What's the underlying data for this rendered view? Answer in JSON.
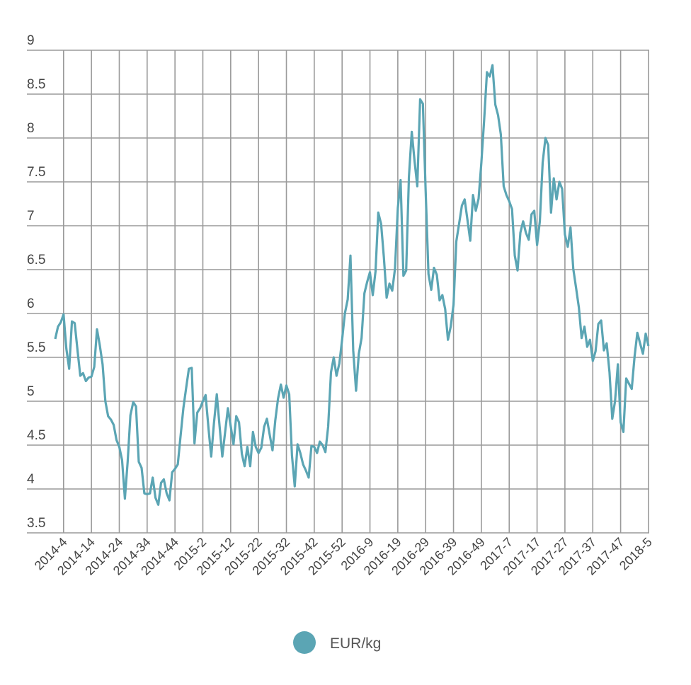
{
  "chart_data": {
    "type": "line",
    "title": "",
    "xlabel": "",
    "ylabel": "",
    "ylim": [
      3.5,
      9
    ],
    "grid": true,
    "legend_position": "bottom",
    "y_ticks": [
      "3.5",
      "4",
      "4.5",
      "5",
      "5.5",
      "6",
      "6.5",
      "7",
      "7.5",
      "8",
      "8.5",
      "9"
    ],
    "x_ticks": [
      "2014-4",
      "2014-14",
      "2014-24",
      "2014-34",
      "2014-44",
      "2015-2",
      "2015-12",
      "2015-22",
      "2015-32",
      "2015-42",
      "2015-52",
      "2016-9",
      "2016-19",
      "2016-29",
      "2016-39",
      "2016-49",
      "2017-7",
      "2017-17",
      "2017-27",
      "2017-37",
      "2017-47",
      "2018-5"
    ],
    "x": [
      "2014-1",
      "2014-2",
      "2014-3",
      "2014-4",
      "2014-5",
      "2014-6",
      "2014-7",
      "2014-8",
      "2014-9",
      "2014-10",
      "2014-11",
      "2014-12",
      "2014-13",
      "2014-14",
      "2014-15",
      "2014-16",
      "2014-17",
      "2014-18",
      "2014-19",
      "2014-20",
      "2014-21",
      "2014-22",
      "2014-23",
      "2014-24",
      "2014-25",
      "2014-26",
      "2014-27",
      "2014-28",
      "2014-29",
      "2014-30",
      "2014-31",
      "2014-32",
      "2014-33",
      "2014-34",
      "2014-35",
      "2014-36",
      "2014-37",
      "2014-38",
      "2014-39",
      "2014-40",
      "2014-41",
      "2014-42",
      "2014-43",
      "2014-44",
      "2014-45",
      "2014-46",
      "2014-47",
      "2014-48",
      "2014-49",
      "2014-50",
      "2014-51",
      "2014-52",
      "2015-1",
      "2015-2",
      "2015-3",
      "2015-4",
      "2015-5",
      "2015-6",
      "2015-7",
      "2015-8",
      "2015-9",
      "2015-10",
      "2015-11",
      "2015-12",
      "2015-13",
      "2015-14",
      "2015-15",
      "2015-16",
      "2015-17",
      "2015-18",
      "2015-19",
      "2015-20",
      "2015-21",
      "2015-22",
      "2015-23",
      "2015-24",
      "2015-25",
      "2015-26",
      "2015-27",
      "2015-28",
      "2015-29",
      "2015-30",
      "2015-31",
      "2015-32",
      "2015-33",
      "2015-34",
      "2015-35",
      "2015-36",
      "2015-37",
      "2015-38",
      "2015-39",
      "2015-40",
      "2015-41",
      "2015-42",
      "2015-43",
      "2015-44",
      "2015-45",
      "2015-46",
      "2015-47",
      "2015-48",
      "2015-49",
      "2015-50",
      "2015-51",
      "2015-52",
      "2015-53",
      "2016-1",
      "2016-2",
      "2016-3",
      "2016-4",
      "2016-5",
      "2016-6",
      "2016-7",
      "2016-8",
      "2016-9",
      "2016-10",
      "2016-11",
      "2016-12",
      "2016-13",
      "2016-14",
      "2016-15",
      "2016-16",
      "2016-17",
      "2016-18",
      "2016-19",
      "2016-20",
      "2016-21",
      "2016-22",
      "2016-23",
      "2016-24",
      "2016-25",
      "2016-26",
      "2016-27",
      "2016-28",
      "2016-29",
      "2016-30",
      "2016-31",
      "2016-32",
      "2016-33",
      "2016-34",
      "2016-35",
      "2016-36",
      "2016-37",
      "2016-38",
      "2016-39",
      "2016-40",
      "2016-41",
      "2016-42",
      "2016-43",
      "2016-44",
      "2016-45",
      "2016-46",
      "2016-47",
      "2016-48",
      "2016-49",
      "2016-50",
      "2016-51",
      "2016-52",
      "2017-1",
      "2017-2",
      "2017-3",
      "2017-4",
      "2017-5",
      "2017-6",
      "2017-7",
      "2017-8",
      "2017-9",
      "2017-10",
      "2017-11",
      "2017-12",
      "2017-13",
      "2017-14",
      "2017-15",
      "2017-16",
      "2017-17",
      "2017-18",
      "2017-19",
      "2017-20",
      "2017-21",
      "2017-22",
      "2017-23",
      "2017-24",
      "2017-25",
      "2017-26",
      "2017-27",
      "2017-28",
      "2017-29",
      "2017-30",
      "2017-31",
      "2017-32",
      "2017-33",
      "2017-34",
      "2017-35",
      "2017-36",
      "2017-37",
      "2017-38",
      "2017-39",
      "2017-40",
      "2017-41",
      "2017-42",
      "2017-43",
      "2017-44",
      "2017-45",
      "2017-46",
      "2017-47",
      "2017-48",
      "2017-49",
      "2017-50",
      "2017-51",
      "2017-52",
      "2018-1",
      "2018-2",
      "2018-3",
      "2018-4",
      "2018-5"
    ],
    "series": [
      {
        "name": "EUR/kg",
        "color": "#5ba5b4",
        "values": [
          5.71,
          5.85,
          5.9,
          5.99,
          5.6,
          5.37,
          5.91,
          5.89,
          5.58,
          5.29,
          5.32,
          5.23,
          5.27,
          5.28,
          5.39,
          5.82,
          5.64,
          5.42,
          5.0,
          4.83,
          4.79,
          4.73,
          4.56,
          4.48,
          4.33,
          3.89,
          4.31,
          4.84,
          4.99,
          4.94,
          4.31,
          4.24,
          3.95,
          3.94,
          3.95,
          4.13,
          3.9,
          3.82,
          4.07,
          4.11,
          3.95,
          3.87,
          4.19,
          4.23,
          4.28,
          4.6,
          4.92,
          5.15,
          5.37,
          5.38,
          4.52,
          4.87,
          4.92,
          5.0,
          5.07,
          4.7,
          4.37,
          4.75,
          5.08,
          4.72,
          4.37,
          4.65,
          4.92,
          4.72,
          4.51,
          4.83,
          4.76,
          4.4,
          4.26,
          4.48,
          4.26,
          4.65,
          4.48,
          4.41,
          4.47,
          4.71,
          4.8,
          4.62,
          4.44,
          4.78,
          5.03,
          5.19,
          5.04,
          5.18,
          5.08,
          4.38,
          4.03,
          4.51,
          4.41,
          4.28,
          4.21,
          4.13,
          4.49,
          4.48,
          4.41,
          4.54,
          4.5,
          4.42,
          4.71,
          5.33,
          5.5,
          5.29,
          5.43,
          5.7,
          6.0,
          6.16,
          6.66,
          5.58,
          5.12,
          5.54,
          5.72,
          6.23,
          6.36,
          6.47,
          6.21,
          6.48,
          7.15,
          7.02,
          6.64,
          6.18,
          6.34,
          6.26,
          6.51,
          7.2,
          7.52,
          6.43,
          6.49,
          7.56,
          8.07,
          7.74,
          7.45,
          8.44,
          8.39,
          7.4,
          6.45,
          6.27,
          6.52,
          6.44,
          6.15,
          6.21,
          6.05,
          5.7,
          5.85,
          6.1,
          6.82,
          7.02,
          7.23,
          7.3,
          7.07,
          6.83,
          7.35,
          7.17,
          7.31,
          7.72,
          8.2,
          8.75,
          8.7,
          8.83,
          8.38,
          8.26,
          8.04,
          7.45,
          7.35,
          7.28,
          7.19,
          6.66,
          6.49,
          6.92,
          7.05,
          6.92,
          6.84,
          7.13,
          7.17,
          6.78,
          7.05,
          7.72,
          8.0,
          7.92,
          7.15,
          7.54,
          7.3,
          7.5,
          7.42,
          6.9,
          6.76,
          6.98,
          6.51,
          6.29,
          6.07,
          5.72,
          5.85,
          5.62,
          5.7,
          5.46,
          5.57,
          5.88,
          5.92,
          5.58,
          5.66,
          5.33,
          4.8,
          5.0,
          5.42,
          4.76,
          4.65,
          5.26,
          5.2,
          5.14,
          5.51,
          5.78,
          5.66,
          5.54,
          5.77,
          5.63
        ]
      }
    ]
  }
}
